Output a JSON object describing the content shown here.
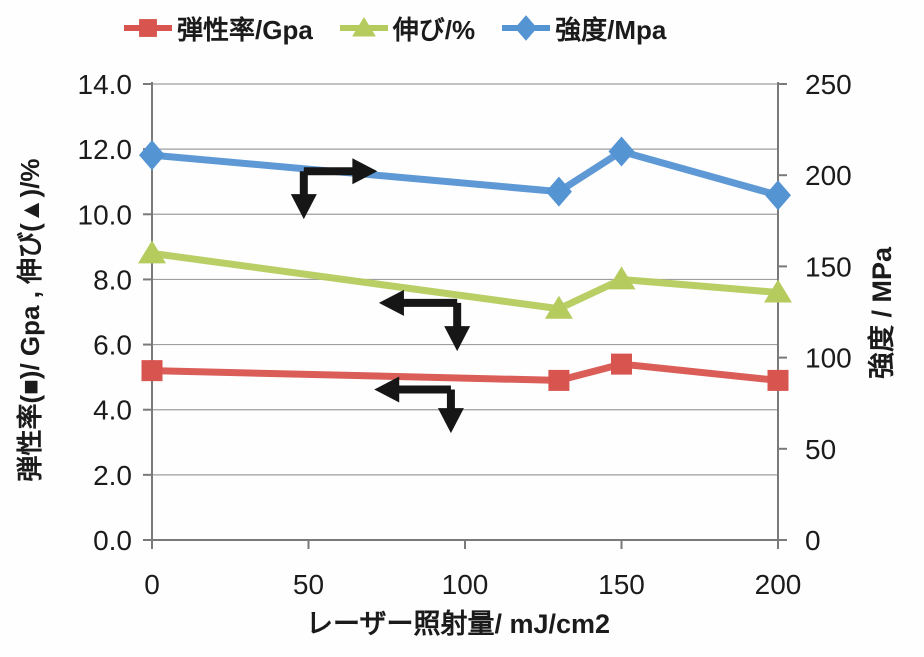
{
  "chart_data": {
    "type": "line",
    "title": "",
    "x_label": "レーザー照射量/ mJ/cm2",
    "x": [
      0,
      130,
      150,
      200
    ],
    "x_range": [
      0,
      200
    ],
    "x_ticks": {
      "values": [
        0,
        50,
        100,
        150,
        200
      ],
      "labels": [
        "0",
        "50",
        "100",
        "150",
        "200"
      ]
    },
    "left_axis": {
      "label": "弾性率(■)/ Gpa , 伸び(▲)/%",
      "range": [
        0,
        14
      ],
      "tick_values": [
        14,
        12,
        10,
        8,
        6,
        4,
        2,
        0
      ],
      "tick_labels": [
        "14.0",
        "12.0",
        "10.0",
        "8.0",
        "6.0",
        "4.0",
        "2.0",
        "0.0"
      ]
    },
    "right_axis": {
      "label": "強度 / MPa",
      "range": [
        0,
        250
      ],
      "tick_values": [
        250,
        200,
        150,
        100,
        50,
        0
      ],
      "tick_labels": [
        "250",
        "200",
        "150",
        "100",
        "50",
        "0"
      ]
    },
    "grid": "horizontal",
    "legend_position": "top",
    "series": [
      {
        "id": "modulus",
        "name": "弾性率/Gpa",
        "axis": "left",
        "marker": "square",
        "color": "#d8544f",
        "values": [
          5.2,
          4.9,
          5.4,
          4.9
        ]
      },
      {
        "id": "elongation",
        "name": "伸び/%",
        "axis": "left",
        "marker": "triangle",
        "color": "#b6cb5e",
        "values": [
          8.8,
          7.1,
          8.0,
          7.6
        ]
      },
      {
        "id": "strength",
        "name": "強度/Mpa",
        "axis": "right",
        "marker": "diamond",
        "color": "#5594d3",
        "values": [
          211,
          191,
          213,
          189
        ]
      }
    ],
    "annotations": [
      {
        "name": "strength-right-axis-arrow",
        "color": "#161616",
        "corner": {
          "x": 48.5,
          "y": 11.32
        },
        "arm_ends": [
          {
            "x": 72.0,
            "y": 11.32
          },
          {
            "x": 48.5,
            "y": 9.85
          }
        ]
      },
      {
        "name": "elongation-left-axis-arrow",
        "color": "#161616",
        "corner": {
          "x": 97.5,
          "y": 7.28
        },
        "arm_ends": [
          {
            "x": 72.5,
            "y": 7.28
          },
          {
            "x": 97.5,
            "y": 5.8
          }
        ]
      },
      {
        "name": "modulus-left-axis-arrow",
        "color": "#161616",
        "corner": {
          "x": 95.5,
          "y": 4.62
        },
        "arm_ends": [
          {
            "x": 71.0,
            "y": 4.62
          },
          {
            "x": 95.5,
            "y": 3.28
          }
        ]
      }
    ]
  },
  "style_colors": {
    "grid": "#9e9e9e",
    "axis": "#7a7a7a",
    "text": "#1b1b1b"
  }
}
